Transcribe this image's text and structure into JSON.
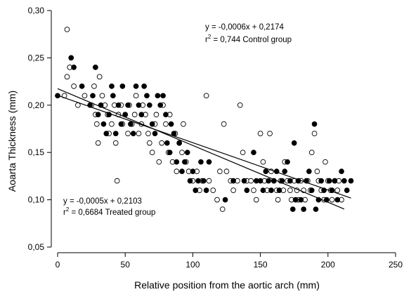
{
  "chart_data": {
    "type": "scatter",
    "title": "",
    "xlabel": "Relative position from the aortic arch (mm)",
    "ylabel": "Aoarta Thickness (mm)",
    "xlim": [
      0,
      250
    ],
    "ylim": [
      0.05,
      0.3
    ],
    "x_ticks": [
      "0",
      "50",
      "100",
      "150",
      "200",
      "250"
    ],
    "y_ticks": [
      "0,05",
      "0,10",
      "0,15",
      "0,20",
      "0,25",
      "0,30"
    ],
    "grid": false,
    "legend": "none",
    "annotations": {
      "control": {
        "equation": "y = -0,0006x + 0,2174",
        "r_prefix": "r",
        "r_exponent": "2",
        "r_text": " = 0,744 Control group"
      },
      "treated": {
        "equation": "y = -0,0005x + 0,2103",
        "r_prefix": "r",
        "r_exponent": "2",
        "r_text": " = 0,6684 Treated group"
      }
    },
    "series": [
      {
        "marker": "open-circle",
        "fill": "#ffffff",
        "stroke": "#000000",
        "regression": {
          "slope": -0.0006,
          "intercept": 0.2174,
          "x_range": [
            0,
            212
          ]
        },
        "points": [
          [
            5,
            0.21
          ],
          [
            7,
            0.28
          ],
          [
            7,
            0.23
          ],
          [
            9,
            0.24
          ],
          [
            12,
            0.22
          ],
          [
            15,
            0.2
          ],
          [
            20,
            0.21
          ],
          [
            25,
            0.2
          ],
          [
            27,
            0.22
          ],
          [
            28,
            0.19
          ],
          [
            29,
            0.18
          ],
          [
            30,
            0.16
          ],
          [
            31,
            0.23
          ],
          [
            33,
            0.21
          ],
          [
            35,
            0.2
          ],
          [
            37,
            0.19
          ],
          [
            38,
            0.17
          ],
          [
            40,
            0.18
          ],
          [
            42,
            0.2
          ],
          [
            43,
            0.16
          ],
          [
            44,
            0.12
          ],
          [
            45,
            0.19
          ],
          [
            47,
            0.2
          ],
          [
            48,
            0.18
          ],
          [
            50,
            0.19
          ],
          [
            52,
            0.17
          ],
          [
            53,
            0.2
          ],
          [
            55,
            0.18
          ],
          [
            57,
            0.19
          ],
          [
            58,
            0.21
          ],
          [
            60,
            0.17
          ],
          [
            62,
            0.18
          ],
          [
            63,
            0.2
          ],
          [
            65,
            0.19
          ],
          [
            67,
            0.17
          ],
          [
            68,
            0.16
          ],
          [
            70,
            0.15
          ],
          [
            72,
            0.18
          ],
          [
            73,
            0.19
          ],
          [
            75,
            0.14
          ],
          [
            77,
            0.16
          ],
          [
            78,
            0.2
          ],
          [
            80,
            0.18
          ],
          [
            82,
            0.15
          ],
          [
            83,
            0.19
          ],
          [
            85,
            0.14
          ],
          [
            87,
            0.17
          ],
          [
            88,
            0.13
          ],
          [
            90,
            0.16
          ],
          [
            92,
            0.15
          ],
          [
            93,
            0.18
          ],
          [
            95,
            0.14
          ],
          [
            97,
            0.13
          ],
          [
            100,
            0.12
          ],
          [
            103,
            0.13
          ],
          [
            105,
            0.11
          ],
          [
            107,
            0.12
          ],
          [
            110,
            0.21
          ],
          [
            112,
            0.12
          ],
          [
            115,
            0.11
          ],
          [
            118,
            0.1
          ],
          [
            120,
            0.13
          ],
          [
            122,
            0.09
          ],
          [
            123,
            0.18
          ],
          [
            125,
            0.13
          ],
          [
            128,
            0.12
          ],
          [
            130,
            0.11
          ],
          [
            133,
            0.12
          ],
          [
            135,
            0.2
          ],
          [
            137,
            0.15
          ],
          [
            140,
            0.12
          ],
          [
            143,
            0.12
          ],
          [
            145,
            0.11
          ],
          [
            147,
            0.1
          ],
          [
            150,
            0.17
          ],
          [
            152,
            0.14
          ],
          [
            153,
            0.12
          ],
          [
            155,
            0.11
          ],
          [
            157,
            0.17
          ],
          [
            158,
            0.13
          ],
          [
            160,
            0.12
          ],
          [
            162,
            0.11
          ],
          [
            163,
            0.1
          ],
          [
            165,
            0.12
          ],
          [
            167,
            0.11
          ],
          [
            168,
            0.14
          ],
          [
            170,
            0.12
          ],
          [
            172,
            0.11
          ],
          [
            173,
            0.1
          ],
          [
            175,
            0.12
          ],
          [
            177,
            0.11
          ],
          [
            178,
            0.1
          ],
          [
            180,
            0.12
          ],
          [
            182,
            0.11
          ],
          [
            183,
            0.1
          ],
          [
            185,
            0.12
          ],
          [
            187,
            0.11
          ],
          [
            188,
            0.15
          ],
          [
            190,
            0.17
          ],
          [
            192,
            0.13
          ],
          [
            193,
            0.12
          ],
          [
            195,
            0.11
          ],
          [
            197,
            0.1
          ],
          [
            198,
            0.14
          ],
          [
            200,
            0.12
          ],
          [
            202,
            0.11
          ],
          [
            203,
            0.1
          ],
          [
            205,
            0.12
          ],
          [
            207,
            0.11
          ],
          [
            208,
            0.12
          ],
          [
            210,
            0.1
          ]
        ]
      },
      {
        "marker": "filled-circle",
        "fill": "#000000",
        "stroke": "#000000",
        "regression": {
          "slope": -0.0005,
          "intercept": 0.2103,
          "x_range": [
            0,
            217
          ]
        },
        "points": [
          [
            0,
            0.21
          ],
          [
            10,
            0.25
          ],
          [
            12,
            0.24
          ],
          [
            18,
            0.22
          ],
          [
            24,
            0.2
          ],
          [
            26,
            0.21
          ],
          [
            28,
            0.24
          ],
          [
            30,
            0.19
          ],
          [
            32,
            0.2
          ],
          [
            34,
            0.18
          ],
          [
            36,
            0.17
          ],
          [
            38,
            0.19
          ],
          [
            40,
            0.22
          ],
          [
            41,
            0.21
          ],
          [
            43,
            0.17
          ],
          [
            45,
            0.2
          ],
          [
            47,
            0.18
          ],
          [
            48,
            0.22
          ],
          [
            50,
            0.19
          ],
          [
            52,
            0.2
          ],
          [
            54,
            0.18
          ],
          [
            56,
            0.17
          ],
          [
            58,
            0.22
          ],
          [
            60,
            0.2
          ],
          [
            62,
            0.19
          ],
          [
            64,
            0.22
          ],
          [
            66,
            0.21
          ],
          [
            68,
            0.2
          ],
          [
            70,
            0.18
          ],
          [
            72,
            0.17
          ],
          [
            74,
            0.21
          ],
          [
            76,
            0.2
          ],
          [
            78,
            0.21
          ],
          [
            80,
            0.19
          ],
          [
            81,
            0.16
          ],
          [
            83,
            0.15
          ],
          [
            84,
            0.18
          ],
          [
            86,
            0.17
          ],
          [
            88,
            0.14
          ],
          [
            90,
            0.16
          ],
          [
            92,
            0.13
          ],
          [
            94,
            0.14
          ],
          [
            96,
            0.15
          ],
          [
            98,
            0.12
          ],
          [
            100,
            0.13
          ],
          [
            102,
            0.11
          ],
          [
            104,
            0.12
          ],
          [
            106,
            0.14
          ],
          [
            108,
            0.12
          ],
          [
            110,
            0.11
          ],
          [
            112,
            0.14
          ],
          [
            124,
            0.1
          ],
          [
            130,
            0.12
          ],
          [
            138,
            0.12
          ],
          [
            140,
            0.11
          ],
          [
            145,
            0.15
          ],
          [
            147,
            0.12
          ],
          [
            150,
            0.12
          ],
          [
            152,
            0.11
          ],
          [
            154,
            0.13
          ],
          [
            156,
            0.12
          ],
          [
            158,
            0.11
          ],
          [
            160,
            0.12
          ],
          [
            162,
            0.13
          ],
          [
            164,
            0.11
          ],
          [
            166,
            0.12
          ],
          [
            168,
            0.13
          ],
          [
            170,
            0.14
          ],
          [
            172,
            0.12
          ],
          [
            174,
            0.09
          ],
          [
            175,
            0.16
          ],
          [
            176,
            0.1
          ],
          [
            178,
            0.12
          ],
          [
            180,
            0.1
          ],
          [
            182,
            0.09
          ],
          [
            184,
            0.12
          ],
          [
            186,
            0.13
          ],
          [
            188,
            0.11
          ],
          [
            190,
            0.18
          ],
          [
            191,
            0.09
          ],
          [
            193,
            0.1
          ],
          [
            195,
            0.12
          ],
          [
            197,
            0.11
          ],
          [
            199,
            0.1
          ],
          [
            201,
            0.12
          ],
          [
            203,
            0.11
          ],
          [
            205,
            0.12
          ],
          [
            207,
            0.1
          ],
          [
            210,
            0.13
          ],
          [
            212,
            0.12
          ],
          [
            214,
            0.11
          ],
          [
            217,
            0.12
          ]
        ]
      }
    ]
  }
}
